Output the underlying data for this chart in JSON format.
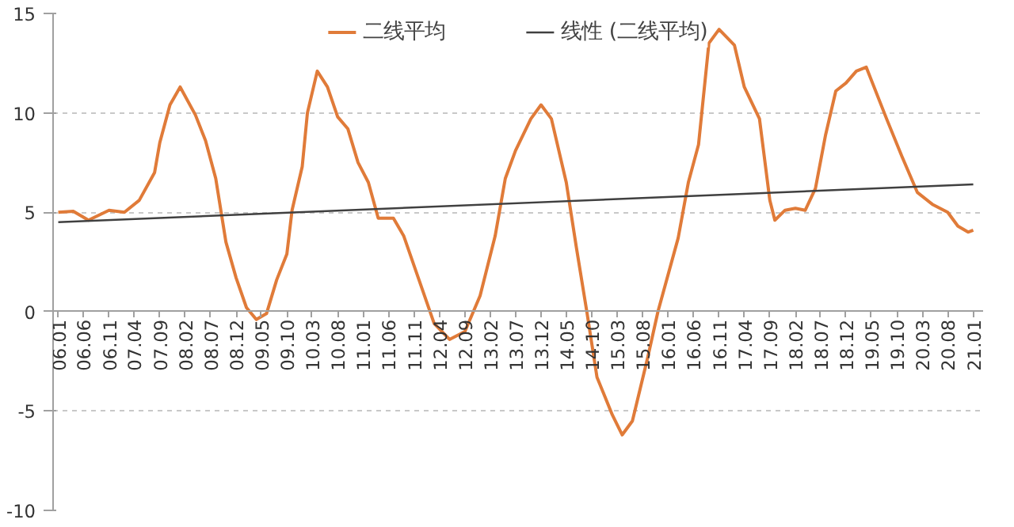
{
  "chart_data": {
    "type": "line",
    "xlim": [
      "2005-12",
      "2021-03"
    ],
    "xticks": [
      {
        "value": "2006-01",
        "label": "06.01"
      },
      {
        "value": "2006-06",
        "label": "06.06"
      },
      {
        "value": "2006-11",
        "label": "06.11"
      },
      {
        "value": "2007-04",
        "label": "07.04"
      },
      {
        "value": "2007-09",
        "label": "07.09"
      },
      {
        "value": "2008-02",
        "label": "08.02"
      },
      {
        "value": "2008-07",
        "label": "08.07"
      },
      {
        "value": "2008-12",
        "label": "08.12"
      },
      {
        "value": "2009-05",
        "label": "09.05"
      },
      {
        "value": "2009-10",
        "label": "09.10"
      },
      {
        "value": "2010-03",
        "label": "10.03"
      },
      {
        "value": "2010-08",
        "label": "10.08"
      },
      {
        "value": "2011-01",
        "label": "11.01"
      },
      {
        "value": "2011-06",
        "label": "11.06"
      },
      {
        "value": "2011-11",
        "label": "11.11"
      },
      {
        "value": "2012-04",
        "label": "12.04"
      },
      {
        "value": "2012-09",
        "label": "12.09"
      },
      {
        "value": "2013-02",
        "label": "13.02"
      },
      {
        "value": "2013-07",
        "label": "13.07"
      },
      {
        "value": "2013-12",
        "label": "13.12"
      },
      {
        "value": "2014-05",
        "label": "14.05"
      },
      {
        "value": "2014-10",
        "label": "14.10"
      },
      {
        "value": "2015-03",
        "label": "15.03"
      },
      {
        "value": "2015-08",
        "label": "15.08"
      },
      {
        "value": "2016-01",
        "label": "16.01"
      },
      {
        "value": "2016-06",
        "label": "16.06"
      },
      {
        "value": "2016-11",
        "label": "16.11"
      },
      {
        "value": "2017-04",
        "label": "17.04"
      },
      {
        "value": "2017-09",
        "label": "17.09"
      },
      {
        "value": "2018-02",
        "label": "18.02"
      },
      {
        "value": "2018-07",
        "label": "18.07"
      },
      {
        "value": "2018-12",
        "label": "18.12"
      },
      {
        "value": "2019-05",
        "label": "19.05"
      },
      {
        "value": "2019-10",
        "label": "19.10"
      },
      {
        "value": "2020-03",
        "label": "20.03"
      },
      {
        "value": "2020-08",
        "label": "20.08"
      },
      {
        "value": "2021-01",
        "label": "21.01"
      }
    ],
    "ylim": [
      -10,
      15
    ],
    "yticks": [
      -10,
      -5,
      0,
      5,
      10,
      15
    ],
    "grid": "y",
    "legend": "top",
    "series": [
      {
        "name": "二线平均",
        "color": "#e07b39",
        "type": "line",
        "x": [
          "2006-01",
          "2006-04",
          "2006-07",
          "2006-11",
          "2007-02",
          "2007-05",
          "2007-08",
          "2007-09",
          "2007-11",
          "2008-01",
          "2008-04",
          "2008-06",
          "2008-08",
          "2008-10",
          "2008-12",
          "2009-02",
          "2009-04",
          "2009-06",
          "2009-08",
          "2009-10",
          "2009-11",
          "2010-01",
          "2010-02",
          "2010-04",
          "2010-06",
          "2010-08",
          "2010-10",
          "2010-12",
          "2011-02",
          "2011-04",
          "2011-07",
          "2011-09",
          "2011-12",
          "2012-03",
          "2012-06",
          "2012-09",
          "2012-12",
          "2013-03",
          "2013-05",
          "2013-07",
          "2013-10",
          "2013-12",
          "2014-02",
          "2014-05",
          "2014-07",
          "2014-09",
          "2014-11",
          "2015-02",
          "2015-04",
          "2015-06",
          "2015-09",
          "2015-11",
          "2016-03",
          "2016-05",
          "2016-07",
          "2016-09",
          "2016-11",
          "2017-02",
          "2017-04",
          "2017-07",
          "2017-09",
          "2017-10",
          "2017-12",
          "2018-02",
          "2018-04",
          "2018-06",
          "2018-08",
          "2018-10",
          "2018-12",
          "2019-02",
          "2019-04",
          "2019-08",
          "2019-11",
          "2020-02",
          "2020-05",
          "2020-08",
          "2020-10",
          "2020-12",
          "2021-01"
        ],
        "values": [
          5.0,
          5.05,
          4.6,
          5.1,
          5.0,
          5.6,
          7.0,
          8.5,
          10.4,
          11.3,
          9.9,
          8.6,
          6.7,
          3.5,
          1.7,
          0.2,
          -0.4,
          -0.1,
          1.6,
          2.9,
          5.1,
          7.3,
          10.0,
          12.1,
          11.3,
          9.8,
          9.2,
          7.5,
          6.5,
          4.7,
          4.7,
          3.8,
          1.6,
          -0.6,
          -1.4,
          -1.0,
          0.8,
          3.8,
          6.7,
          8.1,
          9.7,
          10.4,
          9.7,
          6.5,
          3.2,
          0.0,
          -3.3,
          -5.2,
          -6.2,
          -5.5,
          -2.3,
          0.0,
          3.7,
          6.5,
          8.4,
          13.5,
          14.2,
          13.4,
          11.3,
          9.7,
          5.6,
          4.6,
          5.1,
          5.2,
          5.1,
          6.2,
          8.9,
          11.1,
          11.5,
          12.1,
          12.3,
          9.7,
          7.8,
          6.0,
          5.4,
          5.0,
          4.3,
          4.0,
          4.1
        ]
      },
      {
        "name": "线性 (二线平均)",
        "color": "#404040",
        "type": "line",
        "x": [
          "2006-01",
          "2021-01"
        ],
        "values": [
          4.5,
          6.4
        ]
      }
    ]
  }
}
